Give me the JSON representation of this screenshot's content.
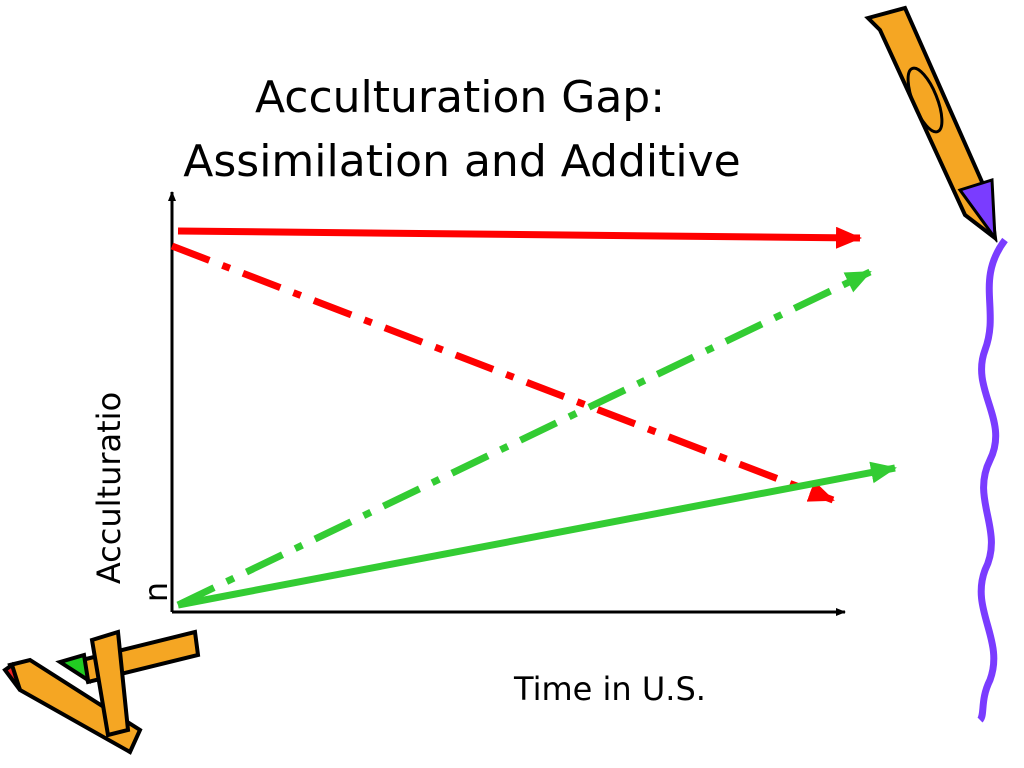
{
  "title": {
    "lines": [
      "Acculturation Gap:",
      "Assimilation and Additive"
    ]
  },
  "axes": {
    "y_label_lines": [
      "Acculturatio",
      "n"
    ],
    "x_label": "Time in U.S."
  }
}
